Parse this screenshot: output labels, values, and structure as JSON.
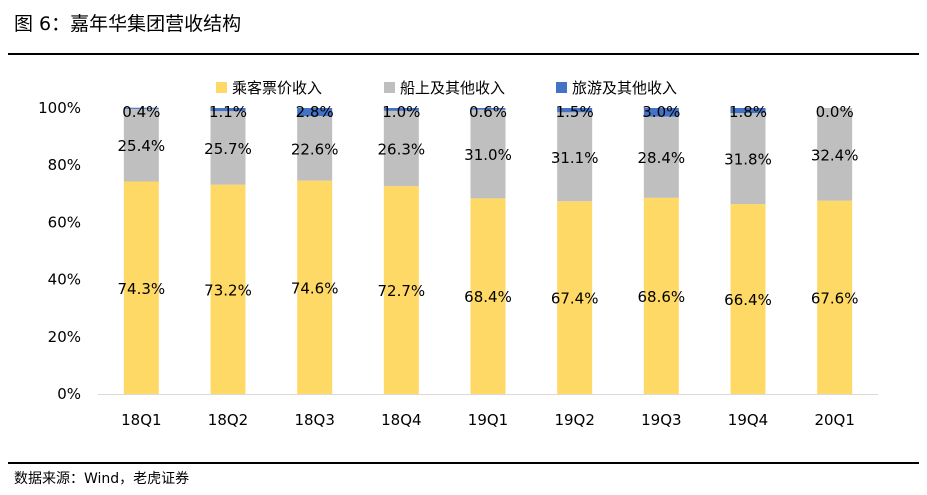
{
  "figure": {
    "title": "图 6：嘉年华集团营收结构",
    "source": "数据来源：Wind，老虎证券"
  },
  "chart_data": {
    "type": "bar",
    "stacked": true,
    "categories": [
      "18Q1",
      "18Q2",
      "18Q3",
      "18Q4",
      "19Q1",
      "19Q2",
      "19Q3",
      "19Q4",
      "20Q1"
    ],
    "series": [
      {
        "name": "乘客票价收入",
        "color": "#FFD966",
        "values": [
          74.3,
          73.2,
          74.6,
          72.7,
          68.4,
          67.4,
          68.6,
          66.4,
          67.6
        ],
        "labels": [
          "74.3%",
          "73.2%",
          "74.6%",
          "72.7%",
          "68.4%",
          "67.4%",
          "68.6%",
          "66.4%",
          "67.6%"
        ]
      },
      {
        "name": "船上及其他收入",
        "color": "#BFBFBF",
        "values": [
          25.4,
          25.7,
          22.6,
          26.3,
          31.0,
          31.1,
          28.4,
          31.8,
          32.4
        ],
        "labels": [
          "25.4%",
          "25.7%",
          "22.6%",
          "26.3%",
          "31.0%",
          "31.1%",
          "28.4%",
          "31.8%",
          "32.4%"
        ]
      },
      {
        "name": "旅游及其他收入",
        "color": "#4472C4",
        "values": [
          0.4,
          1.1,
          2.8,
          1.0,
          0.6,
          1.5,
          3.0,
          1.8,
          0.0
        ],
        "labels": [
          "0.4%",
          "1.1%",
          "2.8%",
          "1.0%",
          "0.6%",
          "1.5%",
          "3.0%",
          "1.8%",
          "0.0%"
        ]
      }
    ],
    "ylim": [
      0,
      100
    ],
    "yticks": [
      "0%",
      "20%",
      "40%",
      "60%",
      "80%",
      "100%"
    ],
    "legend_position": "top-center",
    "grid": false
  }
}
